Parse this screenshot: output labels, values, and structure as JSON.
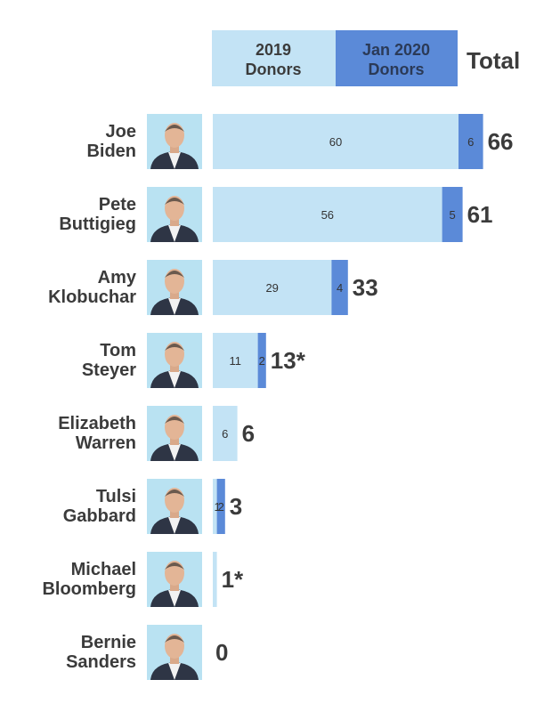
{
  "legend": {
    "series_2019": "2019\nDonors",
    "series_jan2020": "Jan 2020\nDonors",
    "total_header": "Total"
  },
  "colors": {
    "donors_2019": "#c3e3f5",
    "donors_jan2020": "#5b8ad8",
    "photo_bg": "#b9e2f2",
    "text": "#3b3b3b"
  },
  "chart_data": {
    "type": "bar",
    "orientation": "horizontal",
    "stacked": true,
    "categories": [
      "Joe\nBiden",
      "Pete\nButtigieg",
      "Amy\nKlobuchar",
      "Tom\nSteyer",
      "Elizabeth\nWarren",
      "Tulsi\nGabbard",
      "Michael\nBloomberg",
      "Bernie\nSanders"
    ],
    "series": [
      {
        "name": "2019 Donors",
        "values": [
          60,
          56,
          29,
          11,
          6,
          1,
          1,
          0
        ],
        "labels": [
          "60",
          "56",
          "29",
          "11",
          "6",
          "1",
          "",
          ""
        ]
      },
      {
        "name": "Jan 2020 Donors",
        "values": [
          6,
          5,
          4,
          2,
          0,
          2,
          0,
          0
        ],
        "labels": [
          "6",
          "5",
          "4",
          "2",
          "",
          "2",
          "",
          ""
        ]
      }
    ],
    "totals": [
      "66",
      "61",
      "33",
      "13*",
      "6",
      "3",
      "1*",
      "0"
    ],
    "photos": [
      "photo-biden",
      "photo-buttigieg",
      "photo-klobuchar",
      "photo-steyer",
      "photo-warren",
      "photo-gabbard",
      "photo-bloomberg",
      "photo-sanders"
    ]
  }
}
